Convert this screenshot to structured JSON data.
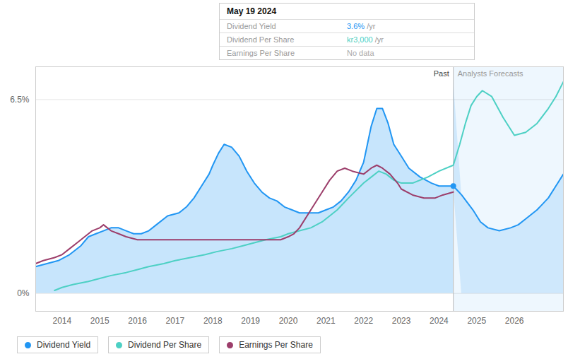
{
  "chart_data": {
    "type": "line",
    "xlim": [
      2013.3,
      2027.3
    ],
    "ylim": [
      -0.006,
      0.076
    ],
    "xticks": [
      2014,
      2015,
      2016,
      2017,
      2018,
      2019,
      2020,
      2021,
      2022,
      2023,
      2024,
      2025,
      2026
    ],
    "yticks": [
      {
        "value": 0.0,
        "label": "0%"
      },
      {
        "value": 0.065,
        "label": "6.5%"
      }
    ],
    "grid": true,
    "legend": "bottom",
    "past_boundary": 2024.38,
    "annotations": [
      "Past",
      "Analysts Forecasts"
    ],
    "series": [
      {
        "name": "Dividend Yield",
        "color": "#2196F3",
        "type": "area",
        "x": [
          2013.3,
          2013.6,
          2013.9,
          2014.2,
          2014.5,
          2014.7,
          2014.9,
          2015.1,
          2015.3,
          2015.5,
          2015.7,
          2015.9,
          2016.1,
          2016.3,
          2016.5,
          2016.8,
          2017.1,
          2017.3,
          2017.5,
          2017.7,
          2017.9,
          2018.0,
          2018.15,
          2018.3,
          2018.5,
          2018.7,
          2018.9,
          2019.1,
          2019.3,
          2019.5,
          2019.7,
          2019.9,
          2020.1,
          2020.3,
          2020.5,
          2020.8,
          2021.0,
          2021.2,
          2021.4,
          2021.6,
          2021.8,
          2022.0,
          2022.1,
          2022.2,
          2022.35,
          2022.5,
          2022.65,
          2022.8,
          2023.0,
          2023.2,
          2023.5,
          2023.8,
          2024.0,
          2024.2,
          2024.38,
          2024.38,
          2024.6,
          2024.9,
          2025.1,
          2025.3,
          2025.6,
          2025.9,
          2026.1,
          2026.3,
          2026.6,
          2026.9,
          2027.1,
          2027.3
        ],
        "values": [
          0.009,
          0.01,
          0.011,
          0.013,
          0.016,
          0.019,
          0.02,
          0.021,
          0.022,
          0.022,
          0.021,
          0.02,
          0.02,
          0.021,
          0.023,
          0.026,
          0.027,
          0.029,
          0.032,
          0.036,
          0.04,
          0.043,
          0.047,
          0.05,
          0.049,
          0.046,
          0.041,
          0.037,
          0.034,
          0.032,
          0.031,
          0.029,
          0.028,
          0.027,
          0.027,
          0.027,
          0.028,
          0.029,
          0.031,
          0.034,
          0.038,
          0.044,
          0.05,
          0.056,
          0.062,
          0.062,
          0.057,
          0.05,
          0.046,
          0.042,
          0.039,
          0.037,
          0.036,
          0.036,
          0.036,
          0.036,
          0.033,
          0.028,
          0.024,
          0.022,
          0.021,
          0.022,
          0.023,
          0.025,
          0.028,
          0.032,
          0.036,
          0.04
        ]
      },
      {
        "name": "Dividend Per Share",
        "color": "#4DD0C4",
        "x": [
          2013.8,
          2014.0,
          2014.3,
          2014.7,
          2015.0,
          2015.3,
          2015.7,
          2016.0,
          2016.3,
          2016.7,
          2017.0,
          2017.4,
          2017.8,
          2018.1,
          2018.5,
          2018.8,
          2019.1,
          2019.4,
          2019.8,
          2020.0,
          2020.3,
          2020.6,
          2020.9,
          2021.1,
          2021.3,
          2021.6,
          2022.0,
          2022.2,
          2022.4,
          2022.6,
          2022.8,
          2023.0,
          2023.3,
          2023.7,
          2024.0,
          2024.38,
          2024.38,
          2024.55,
          2024.7,
          2024.85,
          2025.0,
          2025.15,
          2025.4,
          2025.7,
          2026.0,
          2026.3,
          2026.6,
          2026.9,
          2027.1,
          2027.3
        ],
        "values": [
          0.001,
          0.002,
          0.003,
          0.004,
          0.005,
          0.006,
          0.007,
          0.008,
          0.009,
          0.01,
          0.011,
          0.012,
          0.013,
          0.014,
          0.015,
          0.016,
          0.017,
          0.018,
          0.019,
          0.02,
          0.021,
          0.022,
          0.024,
          0.026,
          0.028,
          0.032,
          0.037,
          0.039,
          0.041,
          0.04,
          0.038,
          0.037,
          0.037,
          0.039,
          0.041,
          0.043,
          0.043,
          0.05,
          0.057,
          0.063,
          0.066,
          0.068,
          0.066,
          0.059,
          0.053,
          0.054,
          0.057,
          0.062,
          0.066,
          0.071
        ]
      },
      {
        "name": "Earnings Per Share",
        "color": "#9C3E6B",
        "x": [
          2013.3,
          2013.5,
          2013.8,
          2014.0,
          2014.2,
          2014.4,
          2014.6,
          2014.8,
          2015.0,
          2015.1,
          2015.2,
          2015.3,
          2015.5,
          2015.7,
          2016.0,
          2016.3,
          2016.6,
          2016.9,
          2017.2,
          2017.5,
          2017.8,
          2018.0,
          2018.3,
          2018.6,
          2018.9,
          2019.1,
          2019.3,
          2019.5,
          2019.8,
          2020.0,
          2020.15,
          2020.3,
          2020.6,
          2020.9,
          2021.1,
          2021.3,
          2021.5,
          2021.7,
          2022.0,
          2022.2,
          2022.35,
          2022.5,
          2022.7,
          2022.9,
          2023.0,
          2023.3,
          2023.6,
          2023.9,
          2024.1,
          2024.38
        ],
        "values": [
          0.01,
          0.011,
          0.012,
          0.013,
          0.015,
          0.017,
          0.019,
          0.021,
          0.022,
          0.023,
          0.022,
          0.021,
          0.02,
          0.019,
          0.018,
          0.018,
          0.018,
          0.018,
          0.018,
          0.018,
          0.018,
          0.018,
          0.018,
          0.018,
          0.018,
          0.018,
          0.018,
          0.018,
          0.018,
          0.019,
          0.02,
          0.022,
          0.028,
          0.034,
          0.038,
          0.041,
          0.042,
          0.041,
          0.04,
          0.042,
          0.043,
          0.042,
          0.04,
          0.037,
          0.035,
          0.033,
          0.032,
          0.032,
          0.033,
          0.034
        ]
      }
    ],
    "tooltip": {
      "title": "May 19 2024",
      "rows": [
        {
          "label": "Dividend Yield",
          "value": "3.6%",
          "unit": " /yr",
          "color": "#2196F3"
        },
        {
          "label": "Dividend Per Share",
          "value": "kr3,000",
          "unit": " /yr",
          "color": "#4DD0C4"
        },
        {
          "label": "Earnings Per Share",
          "value": "No data",
          "unit": "",
          "color": "#aaaaaa"
        }
      ]
    }
  }
}
